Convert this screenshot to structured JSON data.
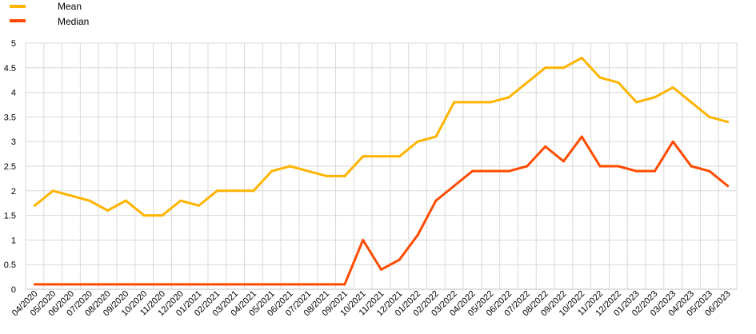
{
  "chart_data": {
    "type": "line",
    "categories": [
      "04/2020",
      "05/2020",
      "06/2020",
      "07/2020",
      "08/2020",
      "09/2020",
      "10/2020",
      "11/2020",
      "12/2020",
      "01/2021",
      "02/2021",
      "03/2021",
      "04/2021",
      "05/2021",
      "06/2021",
      "07/2021",
      "08/2021",
      "09/2021",
      "10/2021",
      "11/2021",
      "12/2021",
      "01/2022",
      "02/2022",
      "03/2022",
      "04/2022",
      "05/2022",
      "06/2022",
      "07/2022",
      "08/2022",
      "09/2022",
      "10/2022",
      "11/2022",
      "12/2022",
      "01/2023",
      "02/2023",
      "03/2023",
      "04/2023",
      "05/2023",
      "06/2023"
    ],
    "series": [
      {
        "name": "Mean",
        "color": "#FFB400",
        "values": [
          1.7,
          2.0,
          1.9,
          1.8,
          1.6,
          1.8,
          1.5,
          1.5,
          1.8,
          1.7,
          2.0,
          2.0,
          2.0,
          2.4,
          2.5,
          2.4,
          2.3,
          2.3,
          2.7,
          2.7,
          2.7,
          3.0,
          3.1,
          3.8,
          3.8,
          3.8,
          3.9,
          4.2,
          4.5,
          4.5,
          4.7,
          4.3,
          4.2,
          3.8,
          3.9,
          4.1,
          3.8,
          3.5,
          3.4
        ]
      },
      {
        "name": "Median",
        "color": "#FF4B00",
        "values": [
          0.1,
          0.1,
          0.1,
          0.1,
          0.1,
          0.1,
          0.1,
          0.1,
          0.1,
          0.1,
          0.1,
          0.1,
          0.1,
          0.1,
          0.1,
          0.1,
          0.1,
          0.1,
          1.0,
          0.4,
          0.6,
          1.1,
          1.8,
          2.1,
          2.4,
          2.4,
          2.4,
          2.5,
          2.9,
          2.6,
          3.1,
          2.5,
          2.5,
          2.4,
          2.4,
          3.0,
          2.5,
          2.4,
          2.1
        ]
      }
    ],
    "ylim": [
      0,
      5
    ],
    "yticks": [
      "0",
      "0.5",
      "1",
      "1.5",
      "2",
      "2.5",
      "3",
      "3.5",
      "4",
      "4.5",
      "5"
    ],
    "grid": true,
    "legend_position": "top-left"
  }
}
